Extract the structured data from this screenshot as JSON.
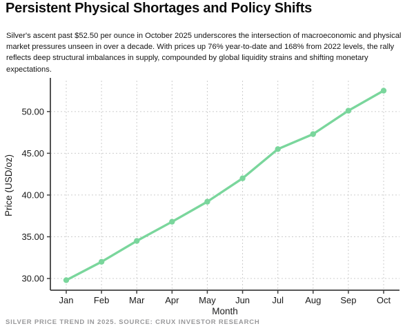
{
  "header": {
    "title": "Persistent Physical Shortages and Policy Shifts",
    "description": "Silver's ascent past $52.50 per ounce in October 2025 underscores the intersection of macroeconomic and physical market pressures unseen in over a decade. With prices up 76% year-to-date and 168% from 2022 levels, the rally reflects deep structural imbalances in supply, compounded by global liquidity strains and shifting monetary expectations."
  },
  "chart_data": {
    "type": "line",
    "title": "",
    "categories": [
      "Jan",
      "Feb",
      "Mar",
      "Apr",
      "May",
      "Jun",
      "Jul",
      "Aug",
      "Sep",
      "Oct"
    ],
    "values": [
      29.8,
      32.0,
      34.5,
      36.8,
      39.2,
      42.0,
      45.5,
      47.3,
      50.1,
      52.5
    ],
    "xlabel": "Month",
    "ylabel": "Price (USD/oz)",
    "yticks": [
      30,
      35,
      40,
      45,
      50
    ],
    "ytick_labels": [
      "30.00",
      "35.00",
      "40.00",
      "45.00",
      "50.00"
    ],
    "xlim": [
      -0.45,
      9.45
    ],
    "ylim": [
      28.6,
      53.7
    ],
    "grid": true,
    "legend": "none",
    "colors": {
      "line": "#7ad69c",
      "grid": "#cccccc",
      "spine": "#3f3f3f",
      "tick_text": "#1a1a1a"
    }
  },
  "footer": {
    "caption": "SILVER PRICE TREND IN 2025. SOURCE: CRUX INVESTOR RESEARCH"
  }
}
